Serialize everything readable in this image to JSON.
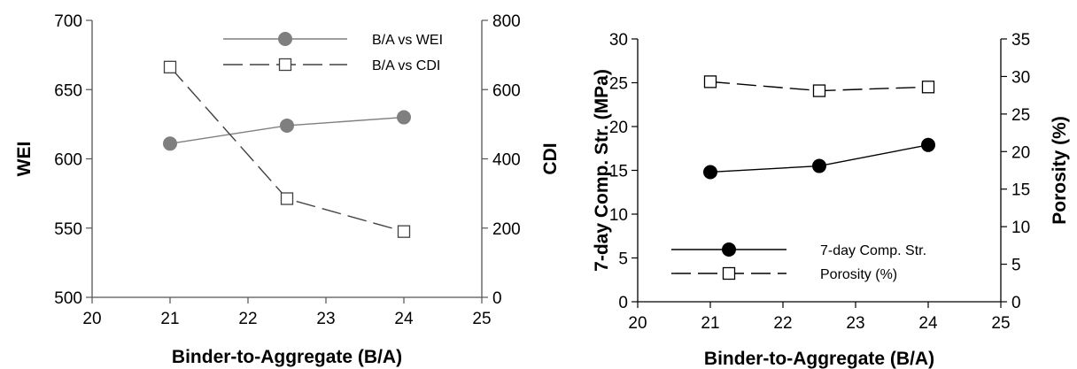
{
  "chart_data": [
    {
      "type": "line",
      "xlabel": "Binder-to-Aggregate (B/A)",
      "ylabel": "WEI",
      "y2label": "CDI",
      "xlim": [
        20,
        25
      ],
      "ylim": [
        500,
        700
      ],
      "y2lim": [
        0,
        800
      ],
      "xticks": [
        "20",
        "21",
        "22",
        "23",
        "24",
        "25"
      ],
      "yticks": [
        "500",
        "550",
        "600",
        "650",
        "700"
      ],
      "y2ticks": [
        "0",
        "200",
        "400",
        "600",
        "800"
      ],
      "grid": false,
      "legend_position": "top-right",
      "series": [
        {
          "name": "B/A vs WEI",
          "axis": "left",
          "style": "solid",
          "marker": "filled-circle",
          "color": "#7f7f7f",
          "x": [
            21,
            22.5,
            24
          ],
          "y": [
            611,
            624,
            630
          ]
        },
        {
          "name": "B/A vs CDI",
          "axis": "right",
          "style": "dashed",
          "marker": "open-square",
          "color": "#404040",
          "x": [
            21,
            22.5,
            24
          ],
          "y": [
            665,
            285,
            190
          ]
        }
      ]
    },
    {
      "type": "line",
      "xlabel": "Binder-to-Aggregate (B/A)",
      "ylabel": "7-day Comp. Str. (MPa)",
      "y2label": "Porosity (%)",
      "xlim": [
        20,
        25
      ],
      "ylim": [
        0,
        30
      ],
      "y2lim": [
        0,
        35
      ],
      "xticks": [
        "20",
        "21",
        "22",
        "23",
        "24",
        "25"
      ],
      "yticks": [
        "0",
        "5",
        "10",
        "15",
        "20",
        "25",
        "30"
      ],
      "y2ticks": [
        "0",
        "5",
        "10",
        "15",
        "20",
        "25",
        "30",
        "35"
      ],
      "grid": false,
      "legend_position": "bottom-left",
      "series": [
        {
          "name": "7-day Comp. Str.",
          "axis": "left",
          "style": "solid",
          "marker": "filled-circle",
          "color": "#000000",
          "x": [
            21,
            22.5,
            24
          ],
          "y": [
            14.8,
            15.5,
            17.9
          ]
        },
        {
          "name": "Porosity (%)",
          "axis": "right",
          "style": "dashed",
          "marker": "open-square",
          "color": "#000000",
          "x": [
            21,
            22.5,
            24
          ],
          "y": [
            29.3,
            28.1,
            28.6
          ]
        }
      ]
    }
  ]
}
